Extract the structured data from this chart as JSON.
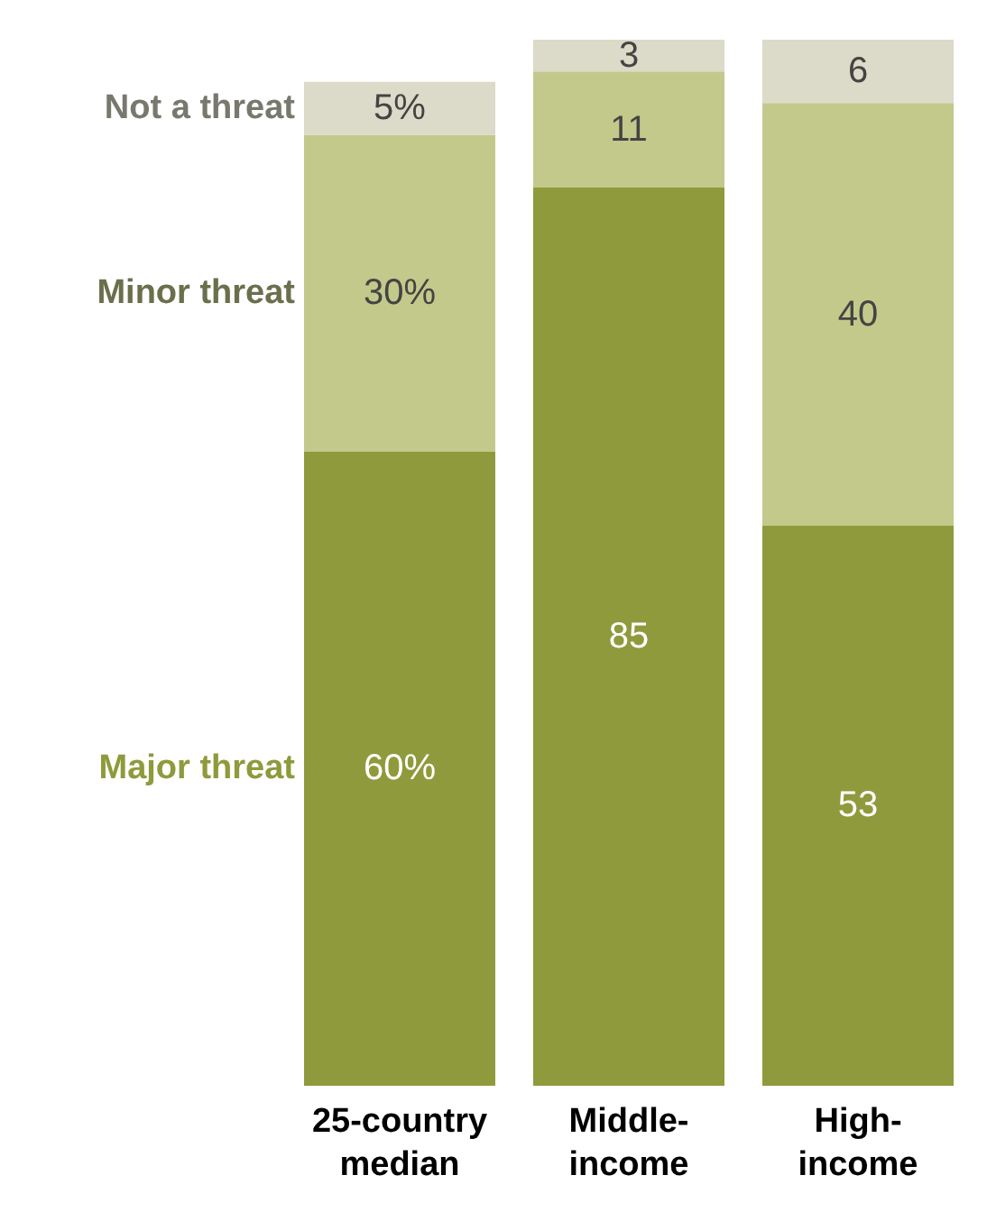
{
  "chart_data": {
    "type": "bar",
    "stacked": true,
    "categories": [
      "25-country\nmedian",
      "Middle-\nincome",
      "High-\nincome"
    ],
    "series": [
      {
        "name": "Major threat",
        "color": "#8f9a3c",
        "values": [
          60,
          85,
          53
        ],
        "value_labels": [
          "60%",
          "85",
          "53"
        ]
      },
      {
        "name": "Minor threat",
        "color": "#c3c98a",
        "values": [
          30,
          11,
          40
        ],
        "value_labels": [
          "30%",
          "11",
          "40"
        ]
      },
      {
        "name": "Not a threat",
        "color": "#dcdac8",
        "values": [
          5,
          3,
          6
        ],
        "value_labels": [
          "5%",
          "3",
          "6"
        ]
      }
    ],
    "ylim": [
      0,
      99
    ],
    "tick_labels": "x",
    "legend": false
  }
}
